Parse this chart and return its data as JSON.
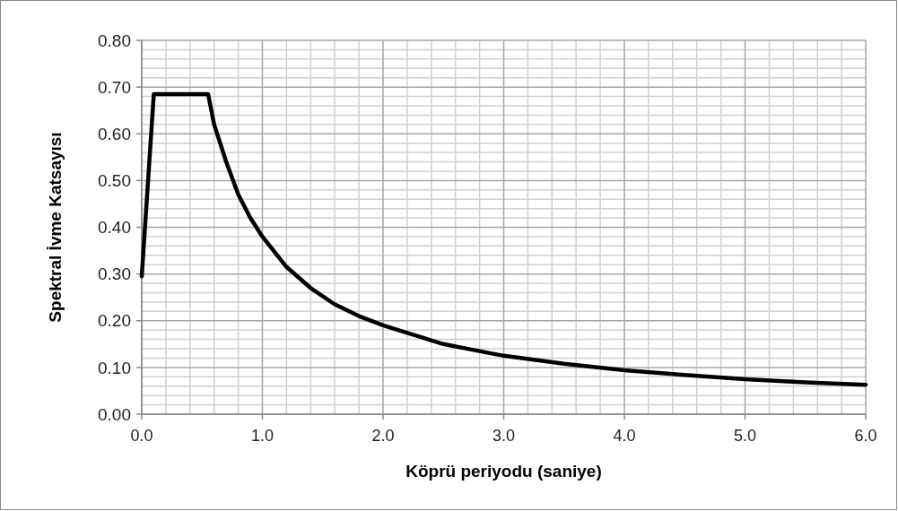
{
  "chart_data": {
    "type": "line",
    "xlabel": "Köprü periyodu (saniye)",
    "ylabel": "Spektral İvme Katsayısı",
    "x": [
      0,
      0.1,
      0.55,
      0.6,
      0.7,
      0.8,
      0.9,
      1.0,
      1.2,
      1.4,
      1.6,
      1.8,
      2.0,
      2.5,
      3.0,
      3.5,
      4.0,
      4.5,
      5.0,
      5.5,
      6.0
    ],
    "series": [
      {
        "color": "#000000",
        "values": [
          0.295,
          0.685,
          0.685,
          0.62,
          0.54,
          0.47,
          0.42,
          0.38,
          0.315,
          0.27,
          0.235,
          0.21,
          0.19,
          0.15,
          0.125,
          0.108,
          0.094,
          0.084,
          0.075,
          0.068,
          0.063
        ]
      }
    ],
    "xlim": [
      0,
      6
    ],
    "xticks": [
      {
        "value": 0,
        "label": "0.0"
      },
      {
        "value": 1,
        "label": "1.0"
      },
      {
        "value": 2,
        "label": "2.0"
      },
      {
        "value": 3,
        "label": "3.0"
      },
      {
        "value": 4,
        "label": "4.0"
      },
      {
        "value": 5,
        "label": "5.0"
      },
      {
        "value": 6,
        "label": "6.0"
      }
    ],
    "ylim": [
      0,
      0.8
    ],
    "yticks": [
      {
        "value": 0,
        "label": "0.00"
      },
      {
        "value": 0.1,
        "label": "0.10"
      },
      {
        "value": 0.2,
        "label": "0.20"
      },
      {
        "value": 0.3,
        "label": "0.30"
      },
      {
        "value": 0.4,
        "label": "0.40"
      },
      {
        "value": 0.5,
        "label": "0.50"
      },
      {
        "value": 0.6,
        "label": "0.60"
      },
      {
        "value": 0.7,
        "label": "0.70"
      },
      {
        "value": 0.8,
        "label": "0.80"
      }
    ],
    "grid": true,
    "marker": "none",
    "line_style": "solid"
  }
}
